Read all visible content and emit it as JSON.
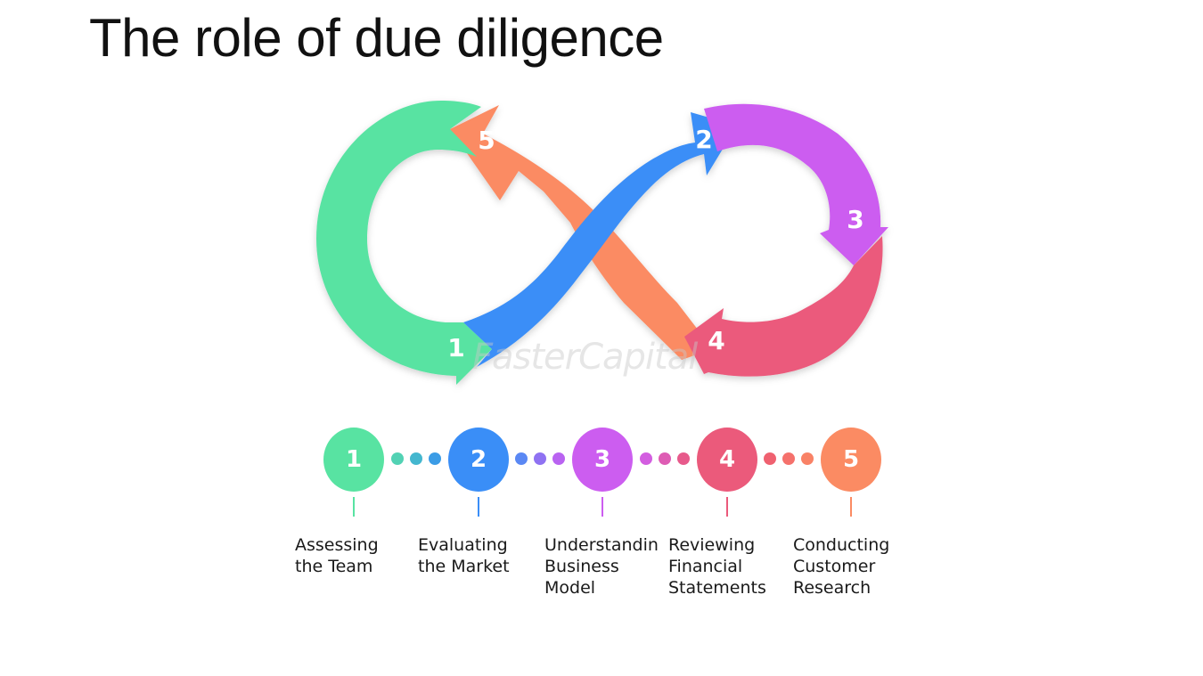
{
  "title": "The role of due diligence",
  "watermark": "FasterCapital",
  "colors": {
    "green": "#58e3a2",
    "blue": "#3a8ef7",
    "purple": "#cc5df0",
    "red": "#eb5a7b",
    "orange": "#fb8b63"
  },
  "loop_numbers": [
    "1",
    "2",
    "3",
    "4",
    "5"
  ],
  "steps": [
    {
      "number": "1",
      "label": "Assessing\nthe Team",
      "color": "#58e3a2"
    },
    {
      "number": "2",
      "label": "Evaluating\nthe Market",
      "color": "#3a8ef7"
    },
    {
      "number": "3",
      "label": "Understanding\nBusiness\nModel",
      "color": "#cc5df0"
    },
    {
      "number": "4",
      "label": "Reviewing\nFinancial\nStatements",
      "color": "#eb5a7b"
    },
    {
      "number": "5",
      "label": "Conducting\nCustomer\nResearch",
      "color": "#fb8b63"
    }
  ],
  "connector_dot_colors": [
    [
      "#52d2b4",
      "#44b7cf",
      "#3b9ce6"
    ],
    [
      "#5a88f4",
      "#8f72f2",
      "#b963f1"
    ],
    [
      "#d35ee0",
      "#de5cb4",
      "#e75a8b"
    ],
    [
      "#ef6170",
      "#f5716c",
      "#f98266"
    ]
  ]
}
